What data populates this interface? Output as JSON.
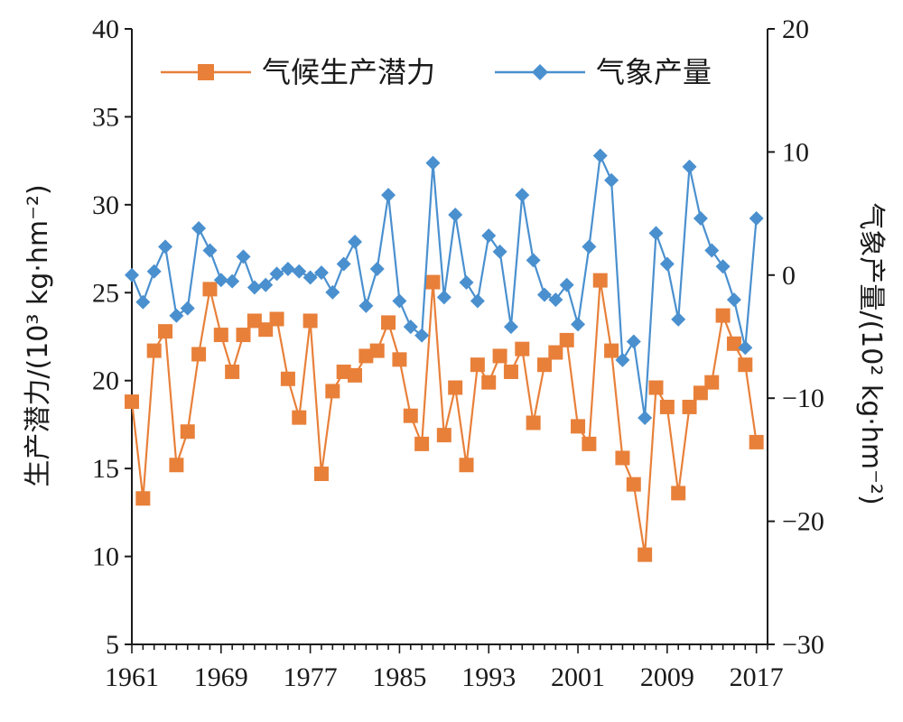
{
  "chart_data": {
    "type": "line",
    "x": [
      1961,
      1962,
      1963,
      1964,
      1965,
      1966,
      1967,
      1968,
      1969,
      1970,
      1971,
      1972,
      1973,
      1974,
      1975,
      1976,
      1977,
      1978,
      1979,
      1980,
      1981,
      1982,
      1983,
      1984,
      1985,
      1986,
      1987,
      1988,
      1989,
      1990,
      1991,
      1992,
      1993,
      1994,
      1995,
      1996,
      1997,
      1998,
      1999,
      2000,
      2001,
      2002,
      2003,
      2004,
      2005,
      2006,
      2007,
      2008,
      2009,
      2010,
      2011,
      2012,
      2013,
      2014,
      2015,
      2016,
      2017
    ],
    "x_tick_labels": [
      "1961",
      "1969",
      "1977",
      "1985",
      "1993",
      "2001",
      "2009",
      "2017"
    ],
    "x_ticks": [
      1961,
      1969,
      1977,
      1985,
      1993,
      2001,
      2009,
      2017
    ],
    "xlim": [
      1961,
      2018
    ],
    "y_left": {
      "label": "生产潜力/(10³ kg·hm⁻²)",
      "lim": [
        5,
        40
      ],
      "ticks": [
        5,
        10,
        15,
        20,
        25,
        30,
        35,
        40
      ]
    },
    "y_right": {
      "label": "气象产量/(10² kg·hm⁻²)",
      "lim": [
        -30,
        20
      ],
      "ticks": [
        -30,
        -20,
        -10,
        0,
        10,
        20
      ],
      "tick_labels": [
        "−30",
        "−20",
        "−10",
        "0",
        "10",
        "20"
      ]
    },
    "legend": {
      "placement": "top"
    },
    "series": [
      {
        "name": "气候生产潜力",
        "axis": "left",
        "color": "#E8803A",
        "marker": "square",
        "values": [
          18.8,
          13.3,
          21.7,
          22.8,
          15.2,
          17.1,
          21.5,
          25.2,
          22.6,
          20.5,
          22.6,
          23.4,
          22.9,
          23.5,
          20.1,
          17.9,
          23.4,
          14.7,
          19.4,
          20.5,
          20.3,
          21.4,
          21.7,
          23.3,
          21.2,
          18.0,
          16.4,
          25.6,
          16.9,
          19.6,
          15.2,
          20.9,
          19.9,
          21.4,
          20.5,
          21.8,
          17.6,
          20.9,
          21.6,
          22.3,
          17.4,
          16.4,
          25.7,
          21.7,
          15.6,
          14.1,
          10.1,
          19.6,
          18.5,
          13.6,
          18.5,
          19.3,
          19.9,
          23.7,
          22.1,
          20.9,
          16.5
        ]
      },
      {
        "name": "气象产量",
        "axis": "right",
        "color": "#4A90CF",
        "marker": "diamond",
        "values": [
          0.0,
          -2.2,
          0.3,
          2.3,
          -3.3,
          -2.7,
          3.8,
          2.0,
          -0.4,
          -0.5,
          1.5,
          -1.0,
          -0.8,
          0.1,
          0.5,
          0.3,
          -0.2,
          0.2,
          -1.4,
          0.9,
          2.7,
          -2.5,
          0.5,
          6.5,
          -2.1,
          -4.2,
          -4.9,
          9.1,
          -1.8,
          4.9,
          -0.6,
          -2.1,
          3.2,
          1.9,
          -4.2,
          6.5,
          1.2,
          -1.6,
          -2.0,
          -0.8,
          -4.0,
          2.3,
          9.7,
          7.7,
          -6.9,
          -5.4,
          -11.6,
          3.4,
          0.9,
          -3.6,
          8.8,
          4.6,
          2.0,
          0.7,
          -2.0,
          -5.9,
          4.6
        ]
      }
    ]
  }
}
